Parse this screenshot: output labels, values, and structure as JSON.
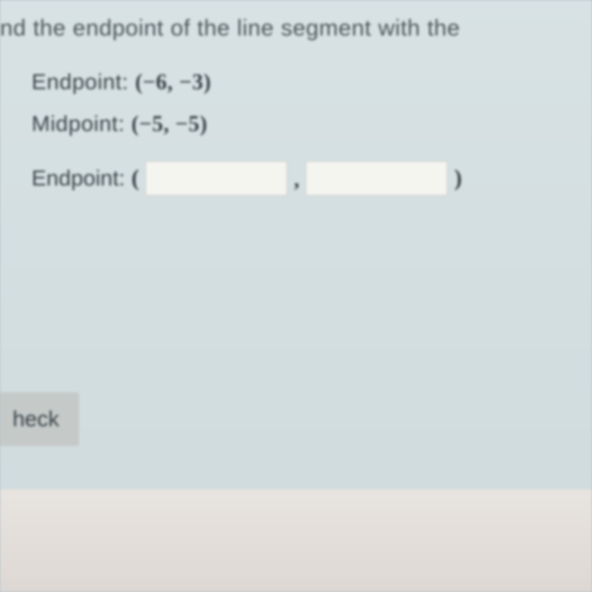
{
  "question": {
    "prompt": "nd the endpoint of the line segment with the",
    "given": [
      {
        "label": "Endpoint: ",
        "value": "(−6, −3)"
      },
      {
        "label": "Midpoint: ",
        "value": "(−5, −5)"
      }
    ],
    "answer": {
      "label": "Endpoint: ",
      "open_paren": "(",
      "close_paren": ")",
      "comma": ",",
      "x_value": "",
      "y_value": ""
    }
  },
  "buttons": {
    "check": "heck"
  }
}
